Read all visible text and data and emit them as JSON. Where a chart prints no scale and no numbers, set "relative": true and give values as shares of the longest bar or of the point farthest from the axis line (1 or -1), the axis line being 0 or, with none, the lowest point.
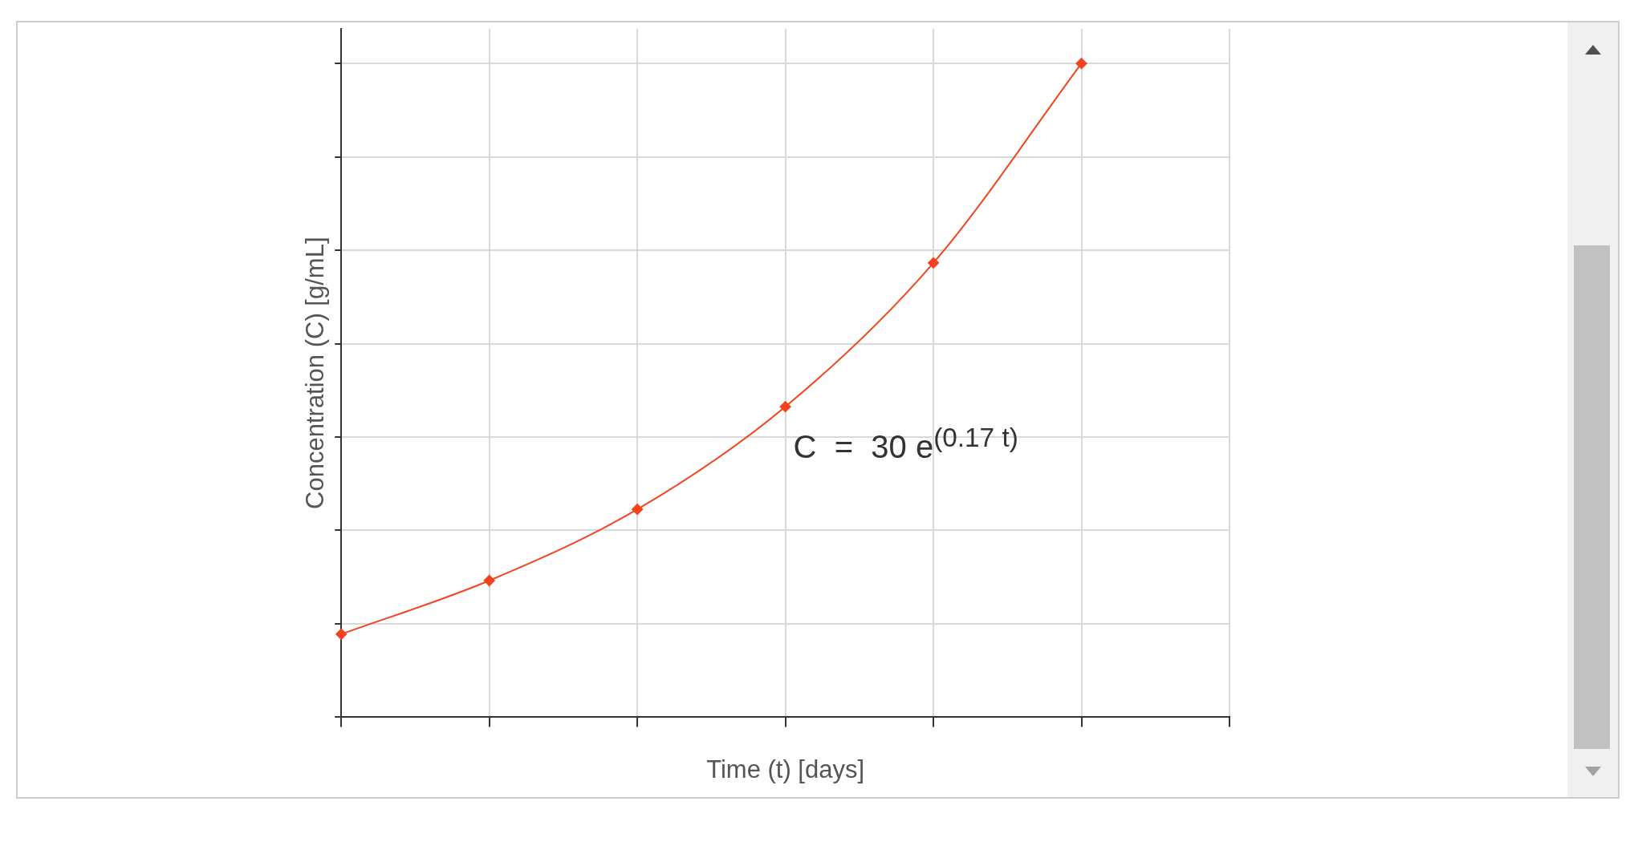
{
  "chart_data": {
    "type": "line",
    "xlabel": "Time (t) [days]",
    "ylabel": "Concentration (C) [g/mL]",
    "relative": true,
    "categories": [
      null,
      null,
      null,
      null,
      null,
      null,
      null
    ],
    "series": [
      {
        "color": "#f4431f",
        "values": [
          0.127,
          0.209,
          0.318,
          0.475,
          0.695,
          1,
          null
        ]
      }
    ],
    "annotations": [
      "C  =  30 e$^{(0.17 t)}$"
    ],
    "marker": "diamond",
    "line_style": "solid",
    "grid": true,
    "legend": false
  }
}
